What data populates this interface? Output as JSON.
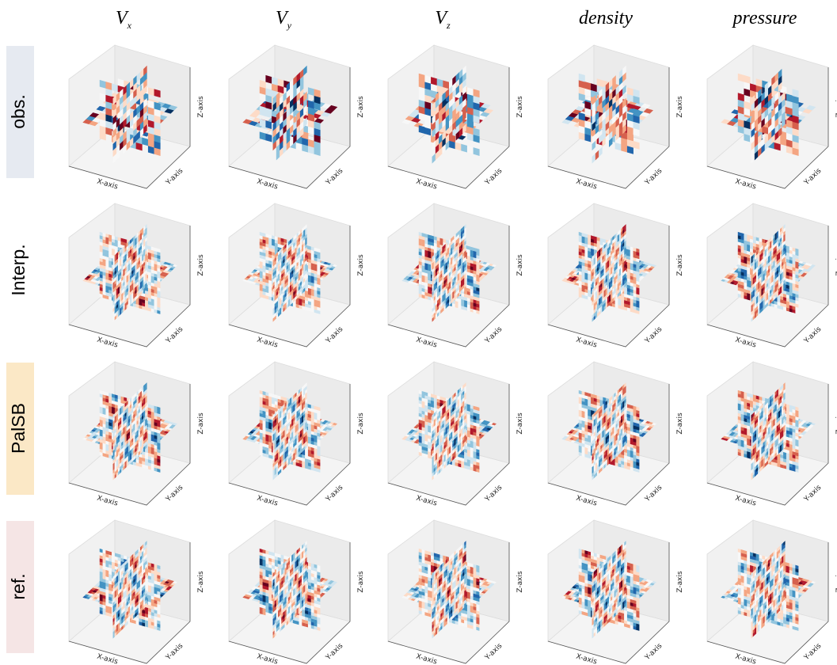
{
  "columns": [
    {
      "symbol": "V",
      "subscript": "x"
    },
    {
      "symbol": "V",
      "subscript": "y"
    },
    {
      "symbol": "V",
      "subscript": "z"
    },
    {
      "symbol": "density"
    },
    {
      "symbol": "pressure"
    }
  ],
  "rows": [
    "obs.",
    "Interp.",
    "PalSB",
    "ref."
  ],
  "axis_labels": {
    "x": "X-axis",
    "y": "Y-axis",
    "z": "Z-axis"
  }
}
